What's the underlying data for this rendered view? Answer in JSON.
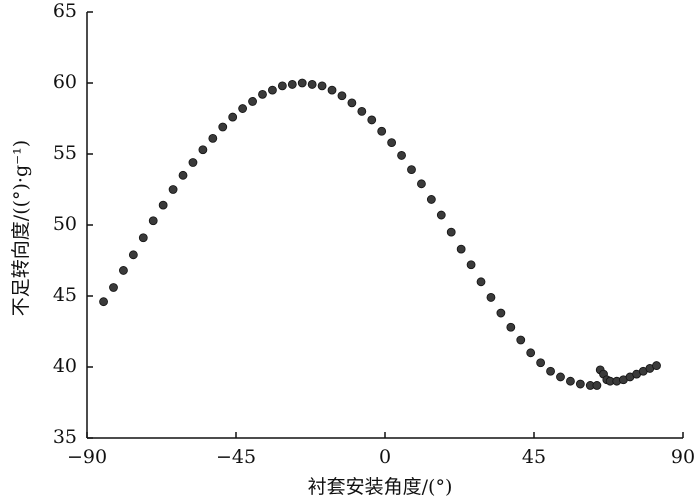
{
  "chart_data": {
    "type": "scatter",
    "xlabel": "衬套安装角度/(°)",
    "ylabel": "不足转向度/((°)·g⁻¹)",
    "color": "#3a3a3a",
    "xlim": [
      -90,
      90
    ],
    "ylim": [
      35,
      65
    ],
    "xticks": [
      {
        "value": -90,
        "label": "−90"
      },
      {
        "value": -45,
        "label": "−45"
      },
      0,
      45,
      90
    ],
    "yticks": [
      35,
      40,
      45,
      50,
      55,
      60,
      65
    ],
    "x": [
      -85,
      -82,
      -79,
      -76,
      -73,
      -70,
      -67,
      -64,
      -61,
      -58,
      -55,
      -52,
      -49,
      -46,
      -43,
      -40,
      -37,
      -34,
      -31,
      -28,
      -25,
      -22,
      -19,
      -16,
      -13,
      -10,
      -7,
      -4,
      -1,
      2,
      5,
      8,
      11,
      14,
      17,
      20,
      23,
      26,
      29,
      32,
      35,
      38,
      41,
      44,
      47,
      50,
      53,
      56,
      59,
      62,
      64,
      65,
      66,
      67,
      68,
      70,
      72,
      74,
      76,
      78,
      80,
      82
    ],
    "values": [
      44.6,
      45.6,
      46.8,
      47.9,
      49.1,
      50.3,
      51.4,
      52.5,
      53.5,
      54.4,
      55.3,
      56.1,
      56.9,
      57.6,
      58.2,
      58.7,
      59.2,
      59.5,
      59.8,
      59.9,
      60.0,
      59.9,
      59.8,
      59.5,
      59.1,
      58.6,
      58.0,
      57.4,
      56.6,
      55.8,
      54.9,
      53.9,
      52.9,
      51.8,
      50.7,
      49.5,
      48.3,
      47.2,
      46.0,
      44.9,
      43.8,
      42.8,
      41.9,
      41.0,
      40.3,
      39.7,
      39.3,
      39.0,
      38.8,
      38.7,
      38.7,
      39.8,
      39.5,
      39.1,
      39.0,
      39.0,
      39.1,
      39.3,
      39.5,
      39.7,
      39.9,
      40.1
    ]
  }
}
